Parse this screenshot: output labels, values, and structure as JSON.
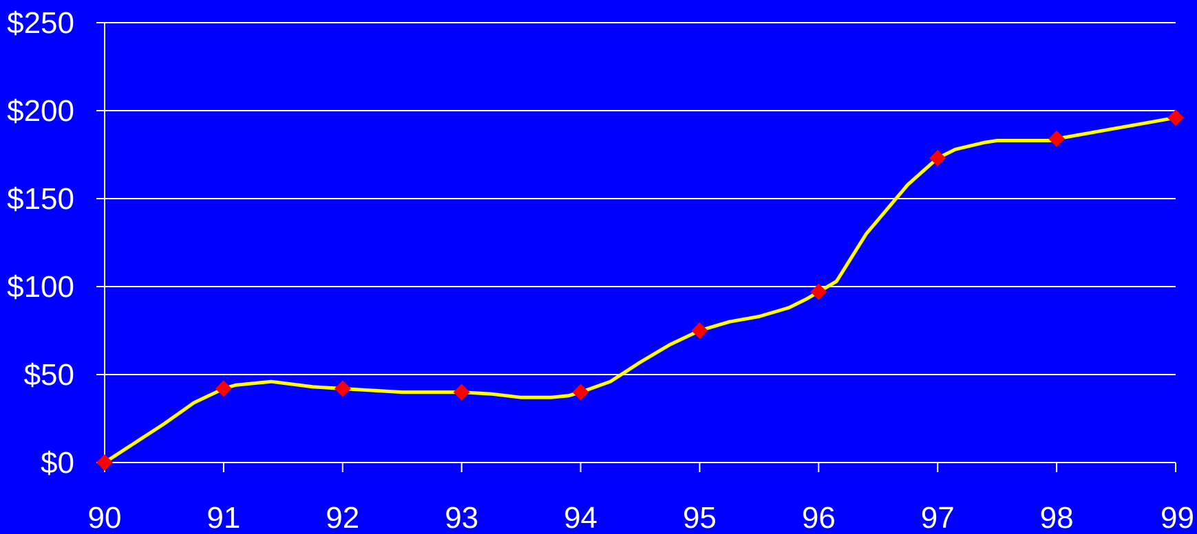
{
  "colors": {
    "background": "#0000FF",
    "gridline": "#FFFFFF",
    "axis": "#FFFFFF",
    "line": "#FFFF00",
    "marker": "#FF0000",
    "text": "#FFFFFF"
  },
  "chart_data": {
    "type": "line",
    "title": "",
    "xlabel": "",
    "ylabel": "",
    "grid": true,
    "legend": "none",
    "ylim": [
      0,
      250
    ],
    "y_ticks": [
      "$0",
      "$50",
      "$100",
      "$150",
      "$200",
      "$250"
    ],
    "y_tick_values": [
      0,
      50,
      100,
      150,
      200,
      250
    ],
    "categories": [
      "90",
      "91",
      "92",
      "93",
      "94",
      "95",
      "96",
      "97",
      "98",
      "99"
    ],
    "series": [
      {
        "marker_values": [
          0,
          42,
          42,
          40,
          40,
          75,
          97,
          173,
          184,
          196
        ],
        "curve_x": [
          0,
          0.25,
          0.5,
          0.75,
          1,
          1.1,
          1.4,
          1.75,
          2,
          2.5,
          3,
          3.25,
          3.5,
          3.75,
          3.9,
          4,
          4.25,
          4.5,
          4.75,
          5,
          5.25,
          5.5,
          5.75,
          5.9,
          6,
          6.15,
          6.4,
          6.75,
          7,
          7.15,
          7.4,
          7.5,
          7.75,
          7.95,
          8,
          8.5,
          9
        ],
        "curve_y": [
          0,
          11,
          22,
          34,
          42,
          44,
          46,
          43,
          42,
          40,
          40,
          39,
          37,
          37,
          38,
          40,
          46,
          57,
          67,
          75,
          80,
          83,
          88,
          93,
          97,
          103,
          130,
          158,
          173,
          178,
          182,
          183,
          183,
          183,
          184,
          190,
          196
        ]
      }
    ]
  }
}
